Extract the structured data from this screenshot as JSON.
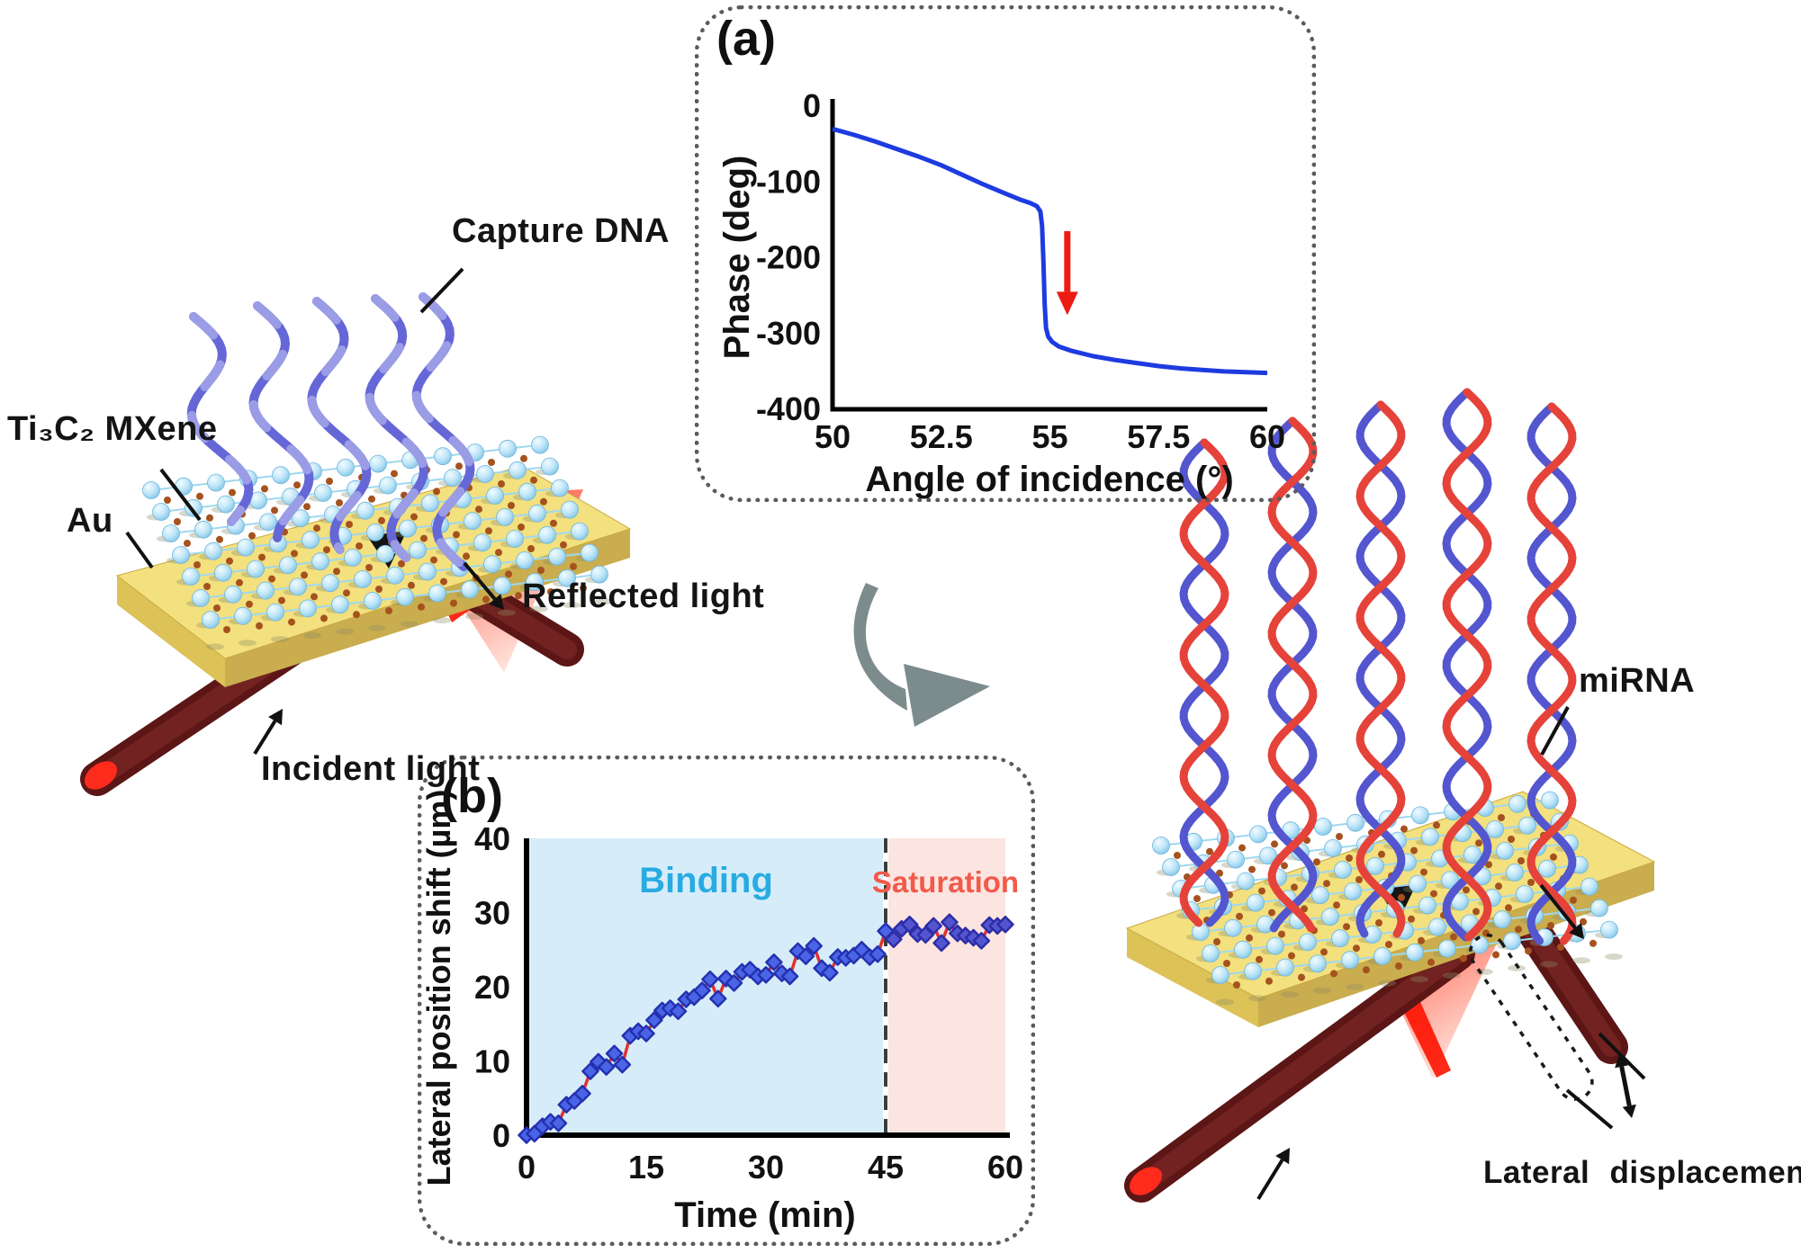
{
  "figure": {
    "panel_a_tag": "(a)",
    "panel_b_tag": "(b)"
  },
  "labels": {
    "capture_dna": "Capture DNA",
    "mxene": "Ti₃C₂ MXene",
    "au": "Au",
    "incident_light": "Incident light",
    "reflected_light": "Reflected light",
    "mirna": "miRNA",
    "lateral_displacement": "Lateral displacement"
  },
  "colors": {
    "curve_blue": "#1d3be0",
    "annotation_red": "#ec1c12",
    "binding_fill": "#d6edf9",
    "binding_text": "#29abe2",
    "saturation_fill": "#fce4e0",
    "saturation_text": "#f25a49",
    "marker_fill": "#4a64e6",
    "marker_stroke": "#2431b0",
    "marker_fill_saturation": "#5355cf",
    "marker_stroke_saturation": "#2d2da8",
    "series_line": "#e0322c",
    "gold_top": "#f3e07e",
    "gold_front": "#c9ad4e",
    "mxene_sphere": "#bfe6f8",
    "mxene_atom": "#a5521f",
    "dna_ribbon": "#6567d6",
    "helix_red": "#e5423a",
    "helix_blue": "#5356cf",
    "beam_dark_red": "#5c1616",
    "swoosh_gray": "#7c8c8c"
  },
  "chart_data": [
    {
      "id": "a",
      "type": "line",
      "title": "",
      "xlabel": "Angle of incidence (°)",
      "ylabel": "Phase (deg)",
      "xlim": [
        50,
        60
      ],
      "ylim": [
        -400,
        0
      ],
      "x_ticks": [
        "50",
        "52.5",
        "55",
        "57.5",
        "60"
      ],
      "y_ticks": [
        "0",
        "-100",
        "-200",
        "-300",
        "-400"
      ],
      "grid": false,
      "legend": "none",
      "line_color": "#1d3be0",
      "points": [
        [
          50,
          -30
        ],
        [
          50.5,
          -38
        ],
        [
          51,
          -47
        ],
        [
          51.5,
          -57
        ],
        [
          52,
          -67
        ],
        [
          52.5,
          -78
        ],
        [
          53,
          -91
        ],
        [
          53.5,
          -104
        ],
        [
          54,
          -116
        ],
        [
          54.3,
          -123
        ],
        [
          54.55,
          -128
        ],
        [
          54.7,
          -132
        ],
        [
          54.78,
          -139
        ],
        [
          54.82,
          -158
        ],
        [
          54.85,
          -205
        ],
        [
          54.88,
          -262
        ],
        [
          54.91,
          -293
        ],
        [
          54.96,
          -304
        ],
        [
          55.05,
          -311
        ],
        [
          55.2,
          -317
        ],
        [
          55.5,
          -323
        ],
        [
          56,
          -330
        ],
        [
          56.5,
          -335
        ],
        [
          57,
          -339
        ],
        [
          57.5,
          -343
        ],
        [
          58,
          -346
        ],
        [
          58.5,
          -348
        ],
        [
          59,
          -350
        ],
        [
          59.5,
          -351
        ],
        [
          60,
          -352
        ]
      ],
      "annotation_arrow": {
        "x": 55.4,
        "y_from": -165,
        "y_to": -245,
        "color": "#ec1c12"
      }
    },
    {
      "id": "b",
      "type": "scatter-line",
      "title": "",
      "xlabel": "Time (min)",
      "ylabel": "Lateral position shift (µm)",
      "xlim": [
        0,
        60
      ],
      "ylim": [
        0,
        40
      ],
      "x_ticks": [
        "0",
        "15",
        "30",
        "45",
        "60"
      ],
      "y_ticks": [
        "0",
        "10",
        "20",
        "30",
        "40"
      ],
      "grid": false,
      "legend": "none",
      "divider_x": 45,
      "regions": [
        {
          "label": "Binding",
          "from": 0,
          "to": 45,
          "fill": "#d6edf9",
          "label_color": "#29abe2"
        },
        {
          "label": "Saturation",
          "from": 45,
          "to": 60,
          "fill": "#fce4e0",
          "label_color": "#f25a49"
        }
      ],
      "points": [
        [
          0,
          0
        ],
        [
          1,
          0.2
        ],
        [
          2,
          1.2
        ],
        [
          3,
          1.8
        ],
        [
          4,
          1.6
        ],
        [
          5,
          4.1
        ],
        [
          6,
          4.6
        ],
        [
          7,
          5.6
        ],
        [
          8,
          8.6
        ],
        [
          9,
          9.9
        ],
        [
          10,
          9.2
        ],
        [
          11,
          11.0
        ],
        [
          12,
          9.5
        ],
        [
          13,
          13.4
        ],
        [
          14,
          14.0
        ],
        [
          15,
          13.7
        ],
        [
          16,
          15.5
        ],
        [
          17,
          16.8
        ],
        [
          18,
          17.1
        ],
        [
          19,
          16.7
        ],
        [
          20,
          18.3
        ],
        [
          21,
          18.6
        ],
        [
          22,
          19.5
        ],
        [
          23,
          21.0
        ],
        [
          24,
          18.4
        ],
        [
          25,
          21.1
        ],
        [
          26,
          20.5
        ],
        [
          27,
          22.0
        ],
        [
          28,
          22.3
        ],
        [
          29,
          21.4
        ],
        [
          30,
          21.6
        ],
        [
          31,
          23.3
        ],
        [
          32,
          21.8
        ],
        [
          33,
          21.4
        ],
        [
          34,
          24.8
        ],
        [
          35,
          24.1
        ],
        [
          36,
          25.5
        ],
        [
          37,
          22.5
        ],
        [
          38,
          21.9
        ],
        [
          39,
          24.0
        ],
        [
          40,
          23.9
        ],
        [
          41,
          24.2
        ],
        [
          42,
          25.0
        ],
        [
          43,
          24.0
        ],
        [
          44,
          24.4
        ],
        [
          45,
          27.5
        ],
        [
          46,
          26.4
        ],
        [
          47,
          27.8
        ],
        [
          48,
          28.4
        ],
        [
          49,
          27.1
        ],
        [
          50,
          27.0
        ],
        [
          51,
          28.2
        ],
        [
          52,
          25.9
        ],
        [
          53,
          28.7
        ],
        [
          54,
          27.2
        ],
        [
          55,
          26.9
        ],
        [
          56,
          26.6
        ],
        [
          57,
          26.2
        ],
        [
          58,
          28.3
        ],
        [
          59,
          28.2
        ],
        [
          60,
          28.4
        ]
      ]
    }
  ]
}
